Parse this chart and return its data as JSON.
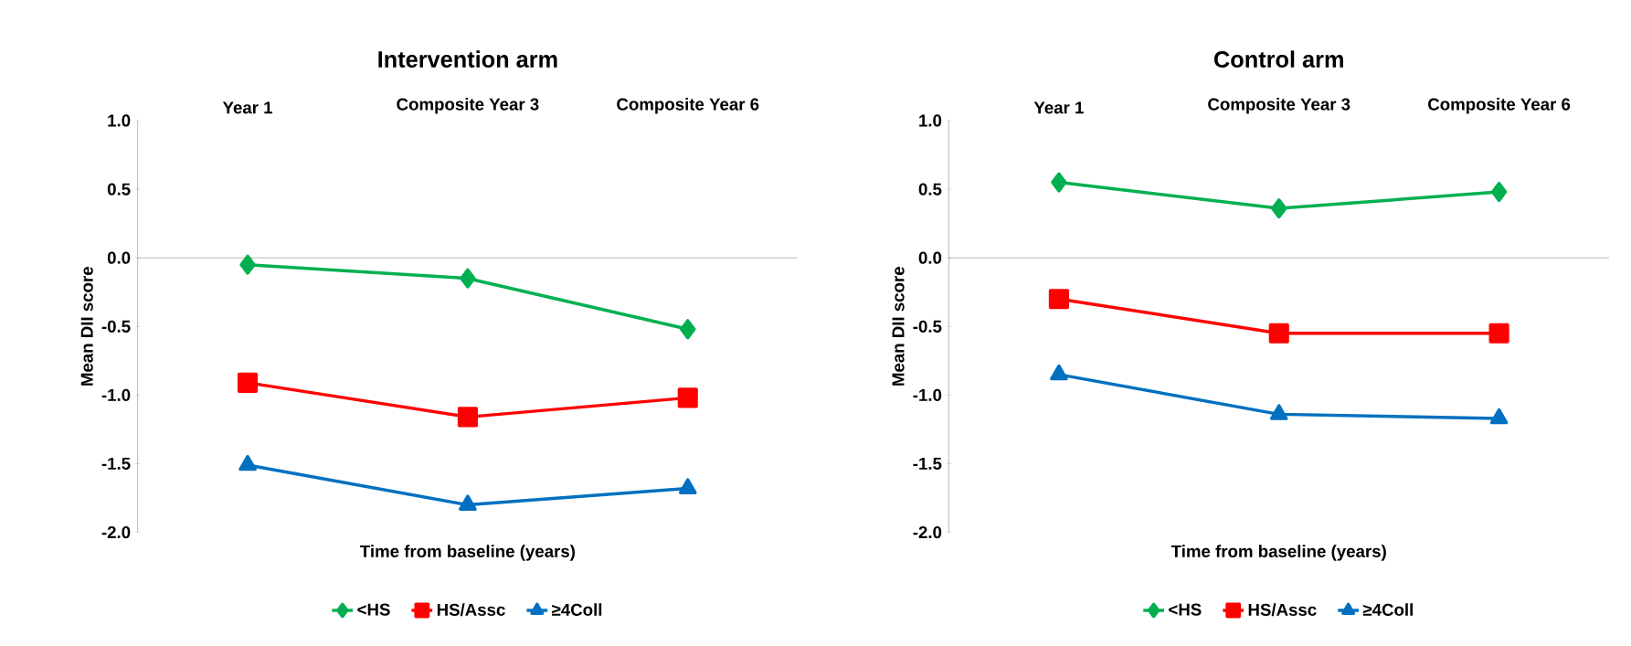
{
  "chart_data": [
    {
      "type": "line",
      "title": "Intervention arm",
      "xlabel": "Time from baseline (years)",
      "ylabel": "Mean DII score",
      "categories": [
        "Year 1",
        "Composite Year 3",
        "Composite Year 6"
      ],
      "ylim": [
        -2,
        1
      ],
      "yticks": [
        {
          "value": -2,
          "label": "-2.0"
        },
        {
          "value": -1.5,
          "label": "-1.5"
        },
        {
          "value": -1,
          "label": "-1.0"
        },
        {
          "value": -0.5,
          "label": "-0.5"
        },
        {
          "value": 0,
          "label": "0.0"
        },
        {
          "value": 0.5,
          "label": "0.5"
        },
        {
          "value": 1,
          "label": "1.0"
        }
      ],
      "legend": "bottom",
      "series": [
        {
          "name": "<HS",
          "color": "#00b050",
          "marker": "diamond",
          "values": [
            -0.05,
            -0.15,
            -0.52
          ]
        },
        {
          "name": "HS/Assc",
          "color": "#ff0000",
          "marker": "square",
          "values": [
            -0.91,
            -1.16,
            -1.02
          ]
        },
        {
          "name": "≥4Coll",
          "color": "#0070c0",
          "marker": "triangle",
          "values": [
            -1.51,
            -1.8,
            -1.68
          ]
        }
      ]
    },
    {
      "type": "line",
      "title": "Control arm",
      "xlabel": "Time from baseline (years)",
      "ylabel": "Mean DII score",
      "categories": [
        "Year 1",
        "Composite Year 3",
        "Composite Year 6"
      ],
      "ylim": [
        -2,
        1
      ],
      "yticks": [
        {
          "value": -2,
          "label": "-2.0"
        },
        {
          "value": -1.5,
          "label": "-1.5"
        },
        {
          "value": -1,
          "label": "-1.0"
        },
        {
          "value": -0.5,
          "label": "-0.5"
        },
        {
          "value": 0,
          "label": "0.0"
        },
        {
          "value": 0.5,
          "label": "0.5"
        },
        {
          "value": 1,
          "label": "1.0"
        }
      ],
      "legend": "bottom",
      "series": [
        {
          "name": "<HS",
          "color": "#00b050",
          "marker": "diamond",
          "values": [
            0.55,
            0.36,
            0.48
          ]
        },
        {
          "name": "HS/Assc",
          "color": "#ff0000",
          "marker": "square",
          "values": [
            -0.3,
            -0.55,
            -0.55
          ]
        },
        {
          "name": "≥4Coll",
          "color": "#0070c0",
          "marker": "triangle",
          "values": [
            -0.85,
            -1.14,
            -1.17
          ]
        }
      ]
    }
  ]
}
